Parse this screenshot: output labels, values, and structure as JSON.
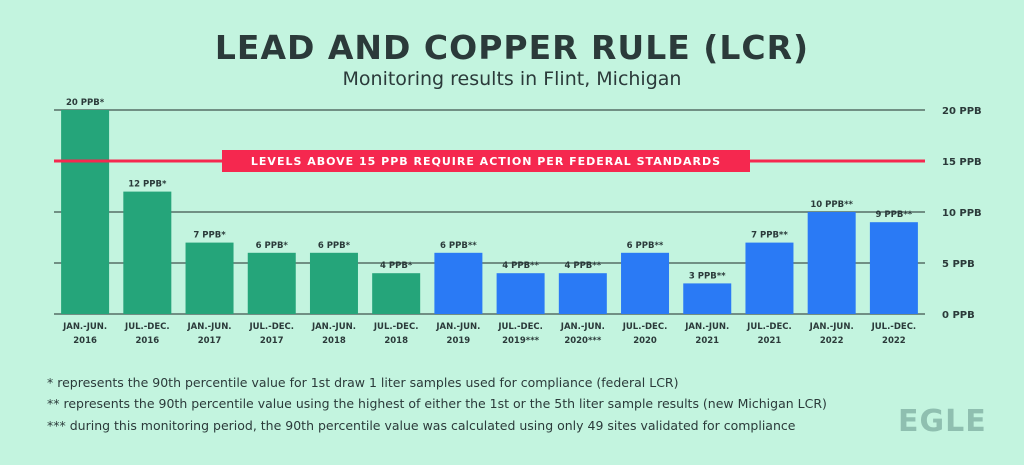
{
  "chart_data": {
    "type": "bar",
    "title": "LEAD AND COPPER RULE (LCR)",
    "subtitle": "Monitoring results in Flint, Michigan",
    "categories": [
      [
        "JAN.-JUN.",
        "2016"
      ],
      [
        "JUL.-DEC.",
        "2016"
      ],
      [
        "JAN.-JUN.",
        "2017"
      ],
      [
        "JUL.-DEC.",
        "2017"
      ],
      [
        "JAN.-JUN.",
        "2018"
      ],
      [
        "JUL.-DEC.",
        "2018"
      ],
      [
        "JAN.-JUN.",
        "2019"
      ],
      [
        "JUL.-DEC.",
        "2019***"
      ],
      [
        "JAN.-JUN.",
        "2020***"
      ],
      [
        "JUL.-DEC.",
        "2020"
      ],
      [
        "JAN.-JUN.",
        "2021"
      ],
      [
        "JUL.-DEC.",
        "2021"
      ],
      [
        "JAN.-JUN.",
        "2022"
      ],
      [
        "JUL.-DEC.",
        "2022"
      ]
    ],
    "values": [
      20,
      12,
      7,
      6,
      6,
      4,
      6,
      4,
      4,
      6,
      3,
      7,
      10,
      9
    ],
    "value_labels": [
      "20 PPB*",
      "12 PPB*",
      "7 PPB*",
      "6 PPB*",
      "6 PPB*",
      "4 PPB*",
      "6 PPB**",
      "4 PPB**",
      "4 PPB**",
      "6 PPB**",
      "3 PPB**",
      "7 PPB**",
      "10 PPB**",
      "9 PPB**"
    ],
    "bar_colors": [
      "#25a57a",
      "#25a57a",
      "#25a57a",
      "#25a57a",
      "#25a57a",
      "#25a57a",
      "#2a7af5",
      "#2a7af5",
      "#2a7af5",
      "#2a7af5",
      "#2a7af5",
      "#2a7af5",
      "#2a7af5",
      "#2a7af5"
    ],
    "ylim": [
      0,
      20
    ],
    "yticks": [
      0,
      5,
      10,
      15,
      20
    ],
    "ytick_labels": [
      "0 PPB",
      "5 PPB",
      "10 PPB",
      "15 PPB",
      "20 PPB"
    ],
    "threshold": {
      "value": 15,
      "label": "LEVELS ABOVE 15 PPB REQUIRE ACTION PER FEDERAL STANDARDS",
      "color": "#f5284f"
    },
    "grid": true
  },
  "footnotes": [
    "* represents the 90th percentile value for 1st draw 1 liter samples used for compliance (federal LCR)",
    "** represents the 90th percentile value using the highest of either the 1st or the 5th liter sample results (new Michigan LCR)",
    "*** during this monitoring period, the 90th percentile value was calculated using only 49 sites validated for compliance"
  ],
  "logo_text": "EGLE"
}
